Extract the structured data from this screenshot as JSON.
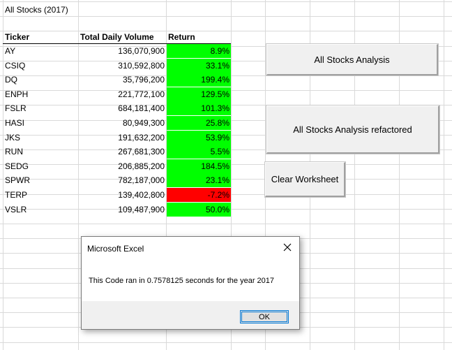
{
  "sheet": {
    "title": "All Stocks (2017)",
    "headers": {
      "ticker": "Ticker",
      "volume": "Total Daily Volume",
      "return": "Return"
    },
    "rows": [
      {
        "ticker": "AY",
        "volume": "136,070,900",
        "return": "8.9%",
        "status": "positive"
      },
      {
        "ticker": "CSIQ",
        "volume": "310,592,800",
        "return": "33.1%",
        "status": "positive"
      },
      {
        "ticker": "DQ",
        "volume": "35,796,200",
        "return": "199.4%",
        "status": "positive"
      },
      {
        "ticker": "ENPH",
        "volume": "221,772,100",
        "return": "129.5%",
        "status": "positive"
      },
      {
        "ticker": "FSLR",
        "volume": "684,181,400",
        "return": "101.3%",
        "status": "positive"
      },
      {
        "ticker": "HASI",
        "volume": "80,949,300",
        "return": "25.8%",
        "status": "positive"
      },
      {
        "ticker": "JKS",
        "volume": "191,632,200",
        "return": "53.9%",
        "status": "positive"
      },
      {
        "ticker": "RUN",
        "volume": "267,681,300",
        "return": "5.5%",
        "status": "positive"
      },
      {
        "ticker": "SEDG",
        "volume": "206,885,200",
        "return": "184.5%",
        "status": "positive"
      },
      {
        "ticker": "SPWR",
        "volume": "782,187,000",
        "return": "23.1%",
        "status": "positive"
      },
      {
        "ticker": "TERP",
        "volume": "139,402,800",
        "return": "-7.2%",
        "status": "negative"
      },
      {
        "ticker": "VSLR",
        "volume": "109,487,900",
        "return": "50.0%",
        "status": "positive"
      }
    ]
  },
  "colors": {
    "positive": "#00ff00",
    "negative": "#ff0000",
    "gridline": "#d9d9d9"
  },
  "buttons": {
    "analysis": "All Stocks Analysis",
    "refactored": "All Stocks Analysis refactored",
    "clear": "Clear Worksheet"
  },
  "dialog": {
    "title": "Microsoft Excel",
    "message": "This Code ran in 0.7578125 seconds for the year 2017",
    "ok": "OK",
    "close_icon": "close-icon"
  }
}
